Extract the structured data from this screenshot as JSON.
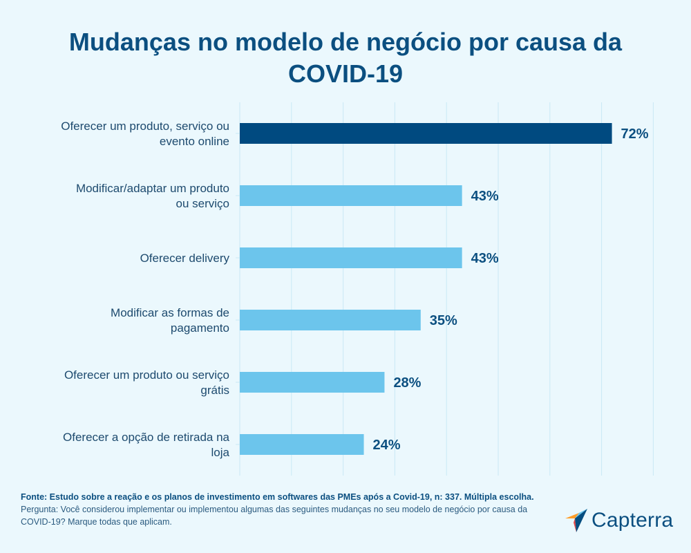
{
  "title": "Mudanças no modelo de negócio por causa da COVID-19",
  "chart_data": {
    "type": "bar",
    "orientation": "horizontal",
    "title": "Mudanças no modelo de negócio por causa da COVID-19",
    "categories": [
      [
        "Oferecer um produto, serviço ou",
        "evento online"
      ],
      [
        "Modificar/adaptar um produto",
        "ou serviço"
      ],
      [
        "Oferecer delivery"
      ],
      [
        "Modificar as formas de",
        "pagamento"
      ],
      [
        "Oferecer um produto ou serviço",
        "grátis"
      ],
      [
        "Oferecer a opção de retirada na",
        "loja"
      ]
    ],
    "values": [
      72,
      43,
      43,
      35,
      28,
      24
    ],
    "value_labels": [
      "72%",
      "43%",
      "43%",
      "35%",
      "28%",
      "24%"
    ],
    "xlim": [
      0,
      80
    ],
    "grid": true,
    "highlight_index": 0,
    "colors": {
      "highlight": "#004a80",
      "default": "#6cc5ec",
      "grid": "#c9e9f5"
    }
  },
  "footer": {
    "source": "Fonte: Estudo sobre a reação e os planos de investimento em softwares das PMEs após a Covid-19, n: 337. Múltipla escolha.",
    "question": "Pergunta: Você considerou implementar ou implementou algumas das seguintes mudanças no seu modelo de negócio por causa da COVID-19? Marque todas que aplicam."
  },
  "logo": {
    "name": "Capterra",
    "icon": "capterra-arrow-icon"
  }
}
